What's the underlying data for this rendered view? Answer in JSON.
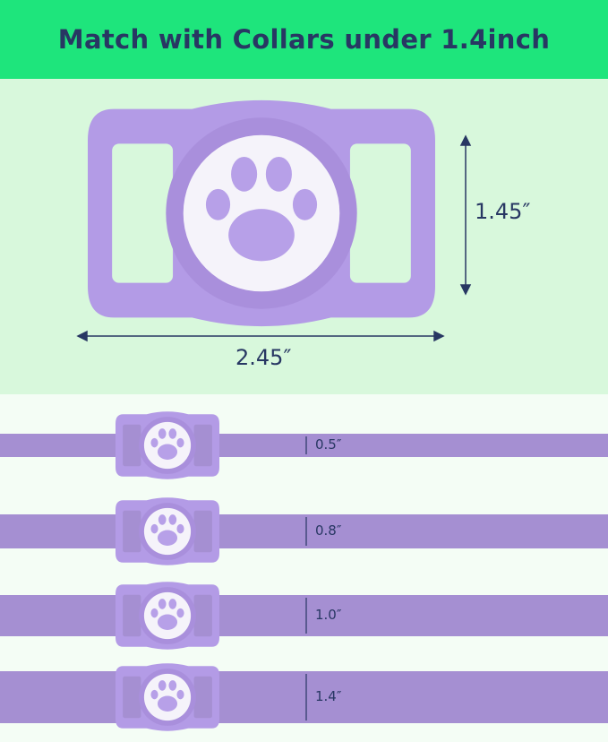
{
  "header": {
    "title": "Match with Collars under 1.4inch"
  },
  "colors": {
    "header_bg": "#1ee57c",
    "text": "#283763",
    "tag": "#b29ae4",
    "collar": "#a58fd2"
  },
  "dimensions": {
    "height": "1.45″",
    "width": "2.45″"
  },
  "collars": [
    {
      "width_label": "0.5″",
      "width_in": 0.5
    },
    {
      "width_label": "0.8″",
      "width_in": 0.8
    },
    {
      "width_label": "1.0″",
      "width_in": 1.0
    },
    {
      "width_label": "1.4″",
      "width_in": 1.4
    }
  ]
}
